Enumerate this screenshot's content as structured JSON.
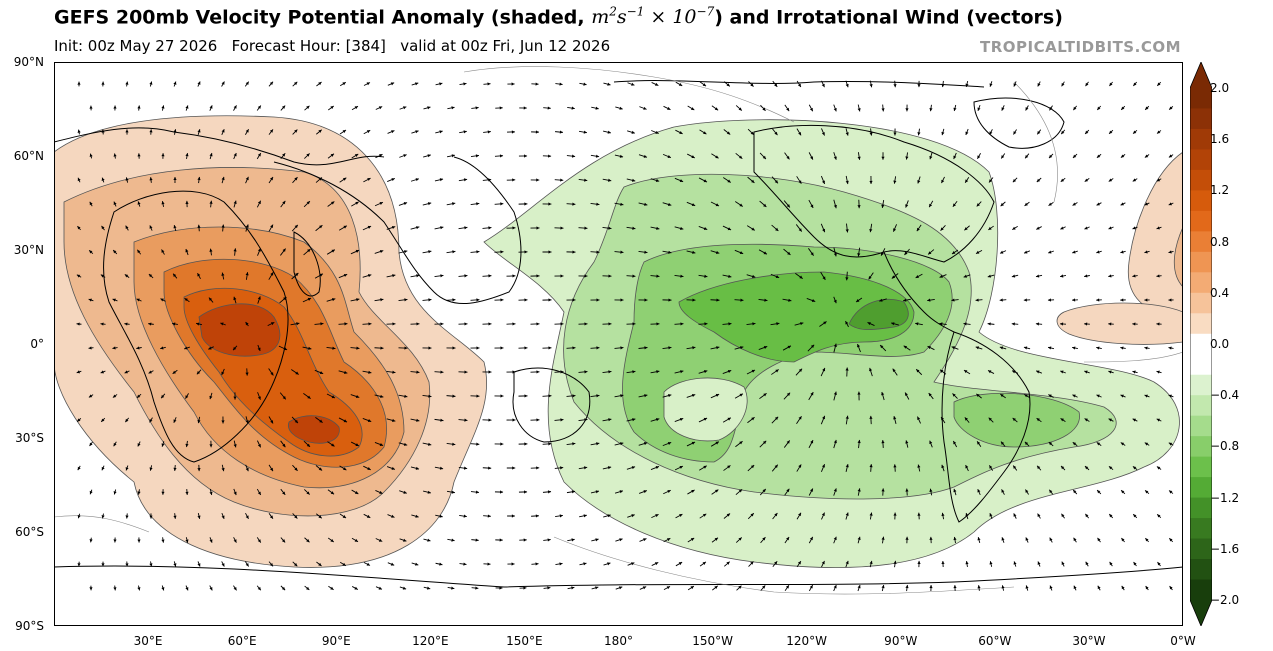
{
  "title": {
    "prefix": "GEFS 200mb Velocity Potential Anomaly (shaded, ",
    "math_base": "m",
    "math_exp1": "2",
    "math_s": "s",
    "math_exp2": "−1",
    "math_times": " × 10",
    "math_exp3": "−7",
    "suffix": ") and Irrotational Wind (vectors)"
  },
  "subtitle": "Init: 00z May 27 2026   Forecast Hour: [384]   valid at 00z Fri, Jun 12 2026",
  "credit": "TROPICALTIDBITS.COM",
  "map": {
    "lat_labels": [
      "90°N",
      "60°N",
      "30°N",
      "0°",
      "30°S",
      "60°S",
      "90°S"
    ],
    "lon_labels": [
      "30°E",
      "60°E",
      "90°E",
      "120°E",
      "150°E",
      "180°",
      "150°W",
      "120°W",
      "90°W",
      "60°W",
      "30°W",
      "0°W"
    ],
    "colors": {
      "brown_1": "#f5d7bf",
      "brown_2": "#eeb98f",
      "brown_3": "#e99c5f",
      "brown_4": "#e0782b",
      "brown_5": "#d95f0e",
      "brown_6": "#bf4308",
      "green_1": "#d8f0c8",
      "green_2": "#b5e1a0",
      "green_3": "#8fd073",
      "green_4": "#68be45",
      "green_5": "#4f9e2f"
    }
  },
  "colorbar": {
    "labels": [
      "2.0",
      "1.6",
      "1.2",
      "0.8",
      "0.4",
      "0.0",
      "−0.4",
      "−0.8",
      "−1.2",
      "−1.6",
      "−2.0"
    ],
    "colors": [
      "#7a2a04",
      "#8c3106",
      "#a03a06",
      "#b24307",
      "#c44e08",
      "#d65b0c",
      "#e2691a",
      "#ea7f35",
      "#ef9553",
      "#f3ab74",
      "#f6c39a",
      "#f9dcc2",
      "#ffffff",
      "#ffffff",
      "#dcf2cf",
      "#c2e8ae",
      "#a5dc8c",
      "#88ce6a",
      "#6cc04b",
      "#54ab35",
      "#439128",
      "#387a20",
      "#2d6519",
      "#225112",
      "#183e0c"
    ]
  }
}
